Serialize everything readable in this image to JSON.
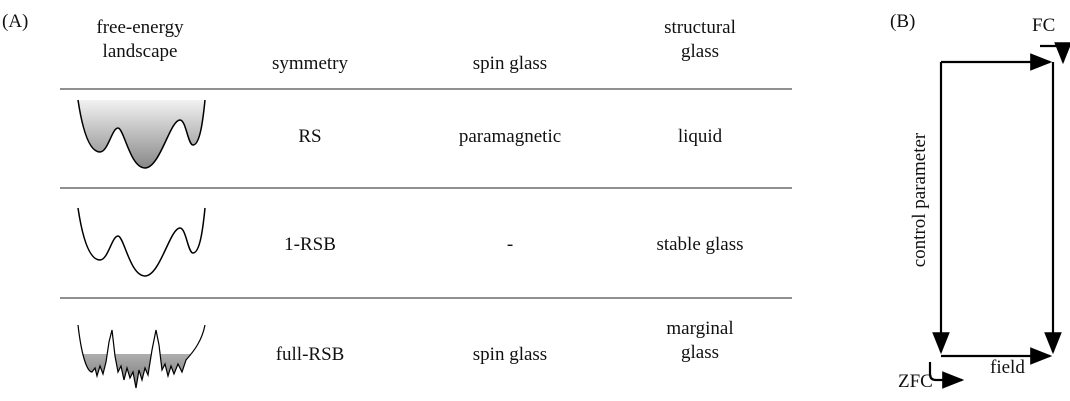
{
  "panel_a": {
    "label": "(A)",
    "table": {
      "header": [
        "free-energy landscape",
        "symmetry",
        "spin glass",
        "structural glass"
      ],
      "rows": [
        [
          "RS",
          "paramagnetic",
          "liquid"
        ],
        [
          "1-RSB",
          "-",
          "stable glass"
        ],
        [
          "full-RSB",
          "spin glass",
          "marginal glass"
        ]
      ]
    }
  },
  "panel_b": {
    "label": "(B)",
    "labels": {
      "fc": "FC",
      "zfc": "ZFC",
      "x_axis": "field",
      "y_axis": "control parameter"
    }
  }
}
